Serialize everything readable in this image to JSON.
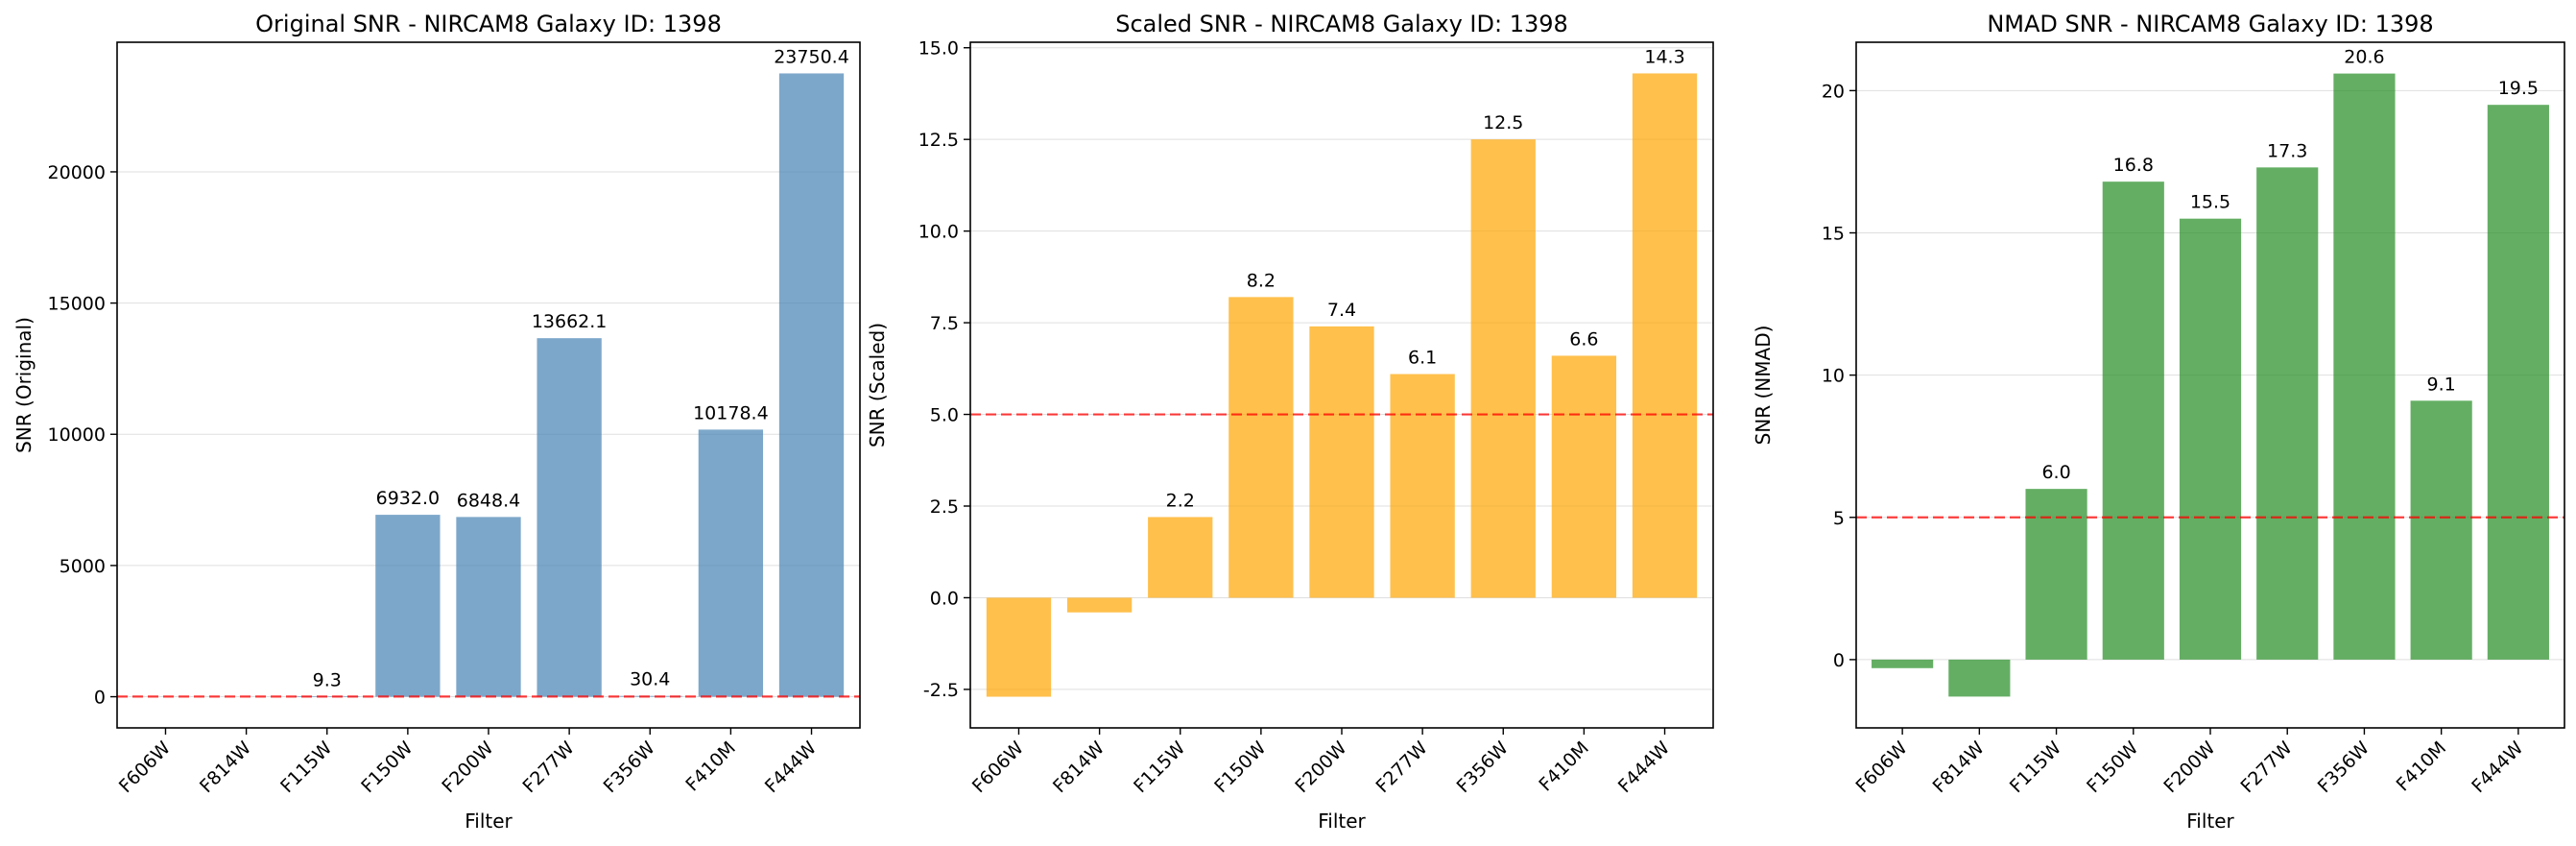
{
  "chart_data": [
    {
      "type": "bar",
      "title": "Original SNR - NIRCAM8 Galaxy ID: 1398",
      "xlabel": "Filter",
      "ylabel": "SNR (Original)",
      "categories": [
        "F606W",
        "F814W",
        "F115W",
        "F150W",
        "F200W",
        "F277W",
        "F356W",
        "F410M",
        "F444W"
      ],
      "values": [
        null,
        null,
        9.3,
        6932.0,
        6848.4,
        13662.1,
        30.4,
        10178.4,
        23750.4
      ],
      "data_labels": [
        "",
        "",
        "9.3",
        "6932.0",
        "6848.4",
        "13662.1",
        "30.4",
        "10178.4",
        "23750.4"
      ],
      "ylim": [
        -1187.5,
        24937.9
      ],
      "yticks": [
        0,
        5000,
        10000,
        15000,
        20000
      ],
      "bar_color": "#4682b4",
      "threshold": 5,
      "threshold_color": "#ff0000",
      "grid": true
    },
    {
      "type": "bar",
      "title": "Scaled SNR - NIRCAM8 Galaxy ID: 1398",
      "xlabel": "Filter",
      "ylabel": "SNR (Scaled)",
      "categories": [
        "F606W",
        "F814W",
        "F115W",
        "F150W",
        "F200W",
        "F277W",
        "F356W",
        "F410M",
        "F444W"
      ],
      "values": [
        -2.7,
        -0.4,
        2.2,
        8.2,
        7.4,
        6.1,
        12.5,
        6.6,
        14.3
      ],
      "data_labels": [
        "",
        "",
        "2.2",
        "8.2",
        "7.4",
        "6.1",
        "12.5",
        "6.6",
        "14.3"
      ],
      "ylim": [
        -3.55,
        15.15
      ],
      "yticks": [
        -2.5,
        0.0,
        2.5,
        5.0,
        7.5,
        10.0,
        12.5,
        15.0
      ],
      "bar_color": "#ffa500",
      "threshold": 5,
      "threshold_color": "#ff0000",
      "grid": true
    },
    {
      "type": "bar",
      "title": "NMAD SNR - NIRCAM8 Galaxy ID: 1398",
      "xlabel": "Filter",
      "ylabel": "SNR (NMAD)",
      "categories": [
        "F606W",
        "F814W",
        "F115W",
        "F150W",
        "F200W",
        "F277W",
        "F356W",
        "F410M",
        "F444W"
      ],
      "values": [
        -0.3,
        -1.3,
        6.0,
        16.8,
        15.5,
        17.3,
        20.6,
        9.1,
        19.5
      ],
      "data_labels": [
        "",
        "",
        "6.0",
        "16.8",
        "15.5",
        "17.3",
        "20.6",
        "9.1",
        "19.5"
      ],
      "ylim": [
        -2.4,
        21.7
      ],
      "yticks": [
        0,
        5,
        10,
        15,
        20
      ],
      "bar_color": "#228b22",
      "threshold": 5,
      "threshold_color": "#ff0000",
      "grid": true
    }
  ]
}
